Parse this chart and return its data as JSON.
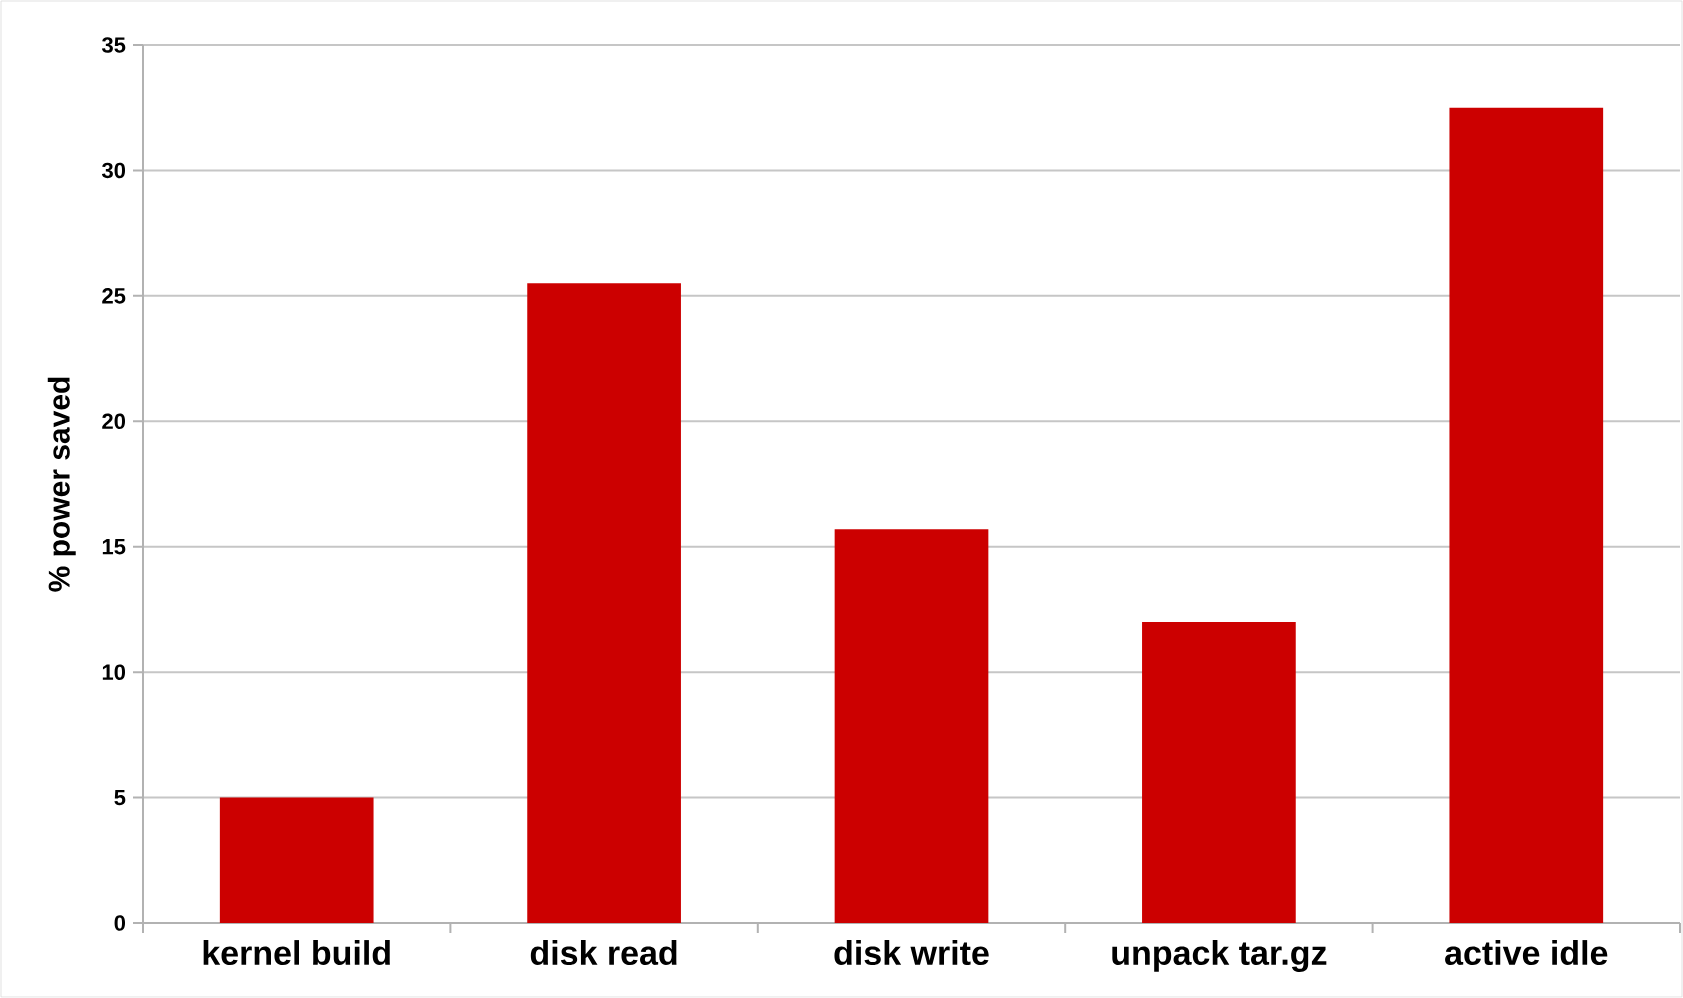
{
  "chart_data": {
    "type": "bar",
    "ylabel": "% power saved",
    "categories": [
      "kernel build",
      "disk read",
      "disk write",
      "unpack tar.gz",
      "active idle"
    ],
    "values": [
      5.0,
      25.5,
      15.7,
      12.0,
      32.5
    ],
    "color": "#cc0000",
    "ylim": [
      0,
      35
    ],
    "yticks": [
      0,
      5,
      10,
      15,
      20,
      25,
      30,
      35
    ],
    "grid": "y"
  }
}
